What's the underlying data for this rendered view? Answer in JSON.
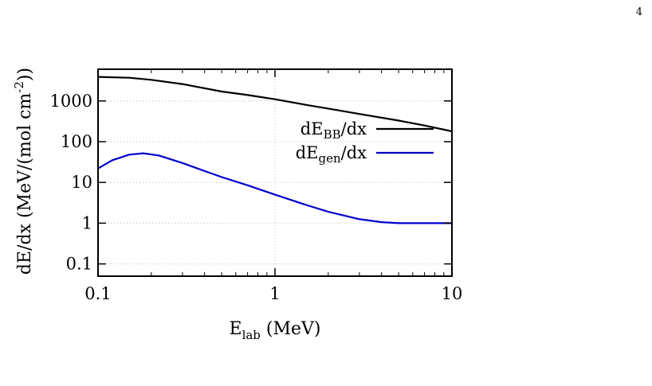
{
  "page": {
    "number": "4"
  },
  "chart_data": {
    "type": "line",
    "xscale": "log",
    "yscale": "log",
    "xlim": [
      0.1,
      10
    ],
    "ylim": [
      0.05,
      6000
    ],
    "grid": true,
    "legend_position": "top-right",
    "xlabel": {
      "main": "E",
      "sub": "lab",
      "rest": " (MeV)"
    },
    "ylabel": {
      "main": "dE/dx (MeV/(mol cm",
      "sup": "-2",
      "rest": "))"
    },
    "xticks": [
      {
        "value": 0.1,
        "label": "0.1"
      },
      {
        "value": 1,
        "label": "1"
      },
      {
        "value": 10,
        "label": "10"
      }
    ],
    "yticks": [
      {
        "value": 0.1,
        "label": "0.1"
      },
      {
        "value": 1,
        "label": "1"
      },
      {
        "value": 10,
        "label": "10"
      },
      {
        "value": 100,
        "label": "100"
      },
      {
        "value": 1000,
        "label": "1000"
      }
    ],
    "series": [
      {
        "name": "dE_BB/dx",
        "legend": {
          "main": "dE",
          "sub": "BB",
          "rest": "/dx"
        },
        "color": "#000000",
        "x": [
          0.1,
          0.15,
          0.2,
          0.3,
          0.5,
          0.7,
          1,
          1.5,
          2,
          3,
          5,
          7,
          10
        ],
        "y": [
          3900,
          3700,
          3300,
          2600,
          1700,
          1400,
          1100,
          800,
          650,
          480,
          330,
          250,
          180
        ]
      },
      {
        "name": "dE_gen/dx",
        "legend": {
          "main": "dE",
          "sub": "gen",
          "rest": "/dx"
        },
        "color": "#0000cc",
        "x": [
          0.1,
          0.12,
          0.15,
          0.18,
          0.22,
          0.3,
          0.4,
          0.5,
          0.7,
          1,
          1.5,
          2,
          3,
          4,
          5,
          6,
          7,
          10
        ],
        "y": [
          22,
          35,
          48,
          52,
          46,
          30,
          19,
          13.5,
          8.5,
          5,
          2.8,
          1.9,
          1.25,
          1.06,
          1.0,
          1.0,
          1.0,
          1.0
        ]
      }
    ]
  }
}
